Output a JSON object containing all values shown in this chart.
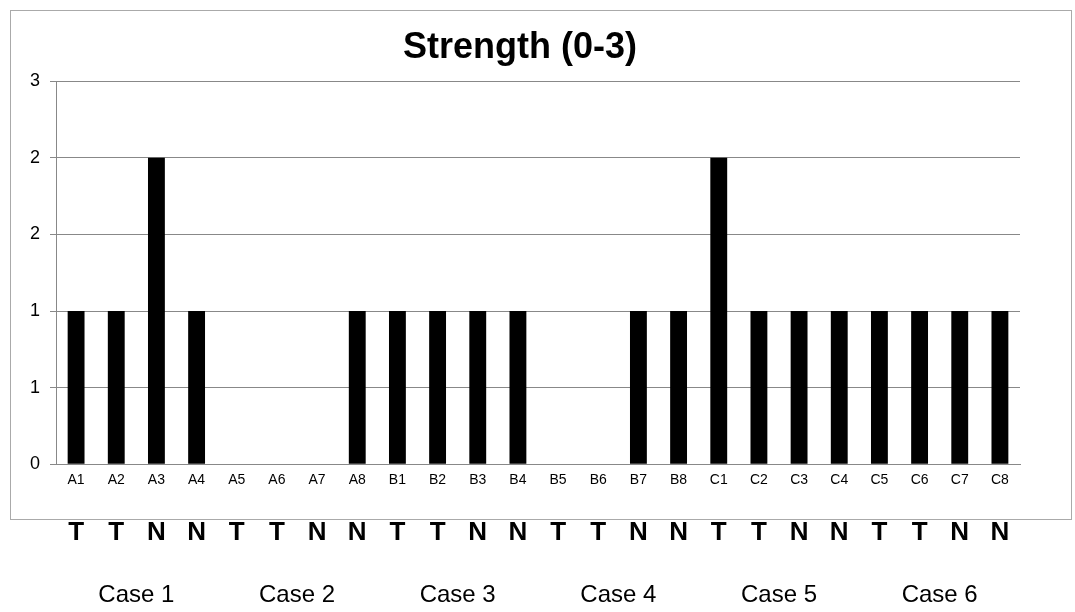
{
  "chart_data": {
    "type": "bar",
    "title": "Strength (0-3)",
    "categories": [
      "A1",
      "A2",
      "A3",
      "A4",
      "A5",
      "A6",
      "A7",
      "A8",
      "B1",
      "B2",
      "B3",
      "B4",
      "B5",
      "B6",
      "B7",
      "B8",
      "C1",
      "C2",
      "C3",
      "C4",
      "C5",
      "C6",
      "C7",
      "C8"
    ],
    "values": [
      1.2,
      1.2,
      2.4,
      1.2,
      0,
      0,
      0,
      1.2,
      1.2,
      1.2,
      1.2,
      1.2,
      0,
      0,
      1.2,
      1.2,
      2.4,
      1.2,
      1.2,
      1.2,
      1.2,
      1.2,
      1.2,
      1.2
    ],
    "color": "#000000",
    "ylim": [
      0,
      3
    ],
    "yticks": [
      0,
      {
        "value": 0.6,
        "label": "1"
      },
      {
        "value": 1.2,
        "label": "1"
      },
      {
        "value": 1.8,
        "label": "2"
      },
      {
        "value": 2.4,
        "label": "2"
      },
      {
        "value": 3,
        "label": "3"
      }
    ],
    "grid": "y",
    "legend": false,
    "annotations": [
      "T",
      "T",
      "N",
      "N",
      "T",
      "T",
      "N",
      "N",
      "T",
      "T",
      "N",
      "N",
      "T",
      "T",
      "N",
      "N",
      "T",
      "T",
      "N",
      "N",
      "T",
      "T",
      "N",
      "N",
      "Case 1",
      "Case 2",
      "Case 3",
      "Case 4",
      "Case 5",
      "Case 6"
    ]
  }
}
